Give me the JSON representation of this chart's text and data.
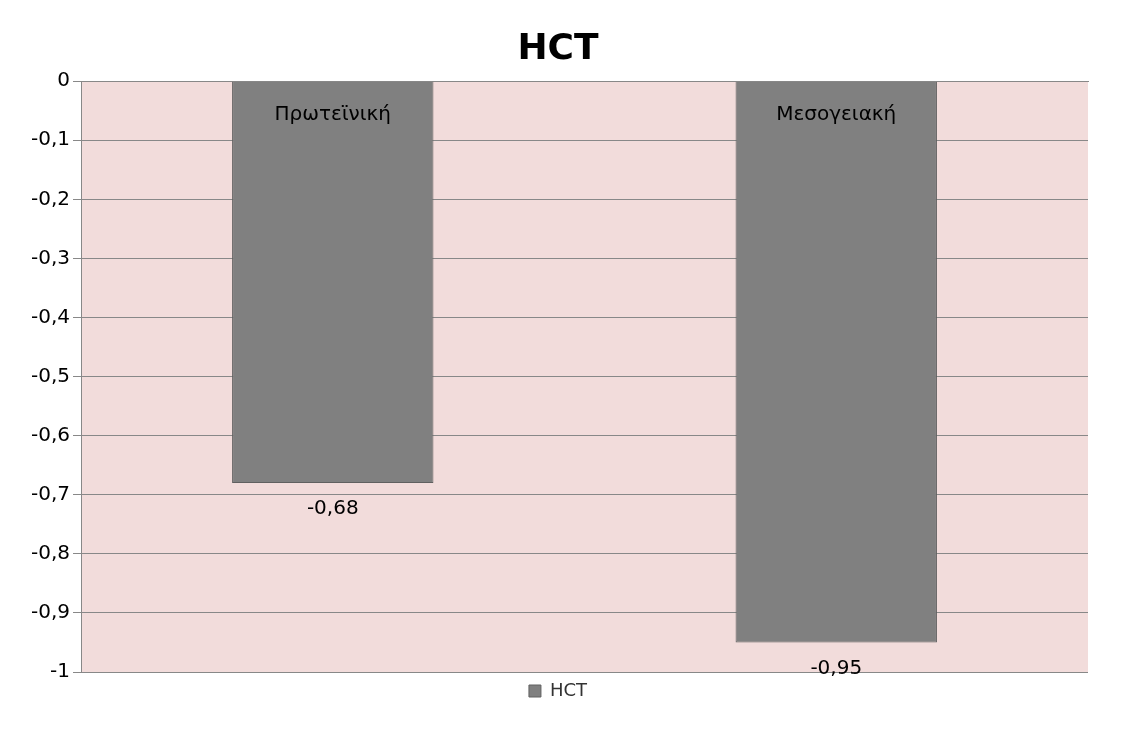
{
  "chart_data": {
    "type": "bar",
    "title": "HCT",
    "categories": [
      "Πρωτεϊνική",
      "Μεσογειακή"
    ],
    "series": [
      {
        "name": "HCT",
        "color": "#808080",
        "values": [
          -0.68,
          -0.95
        ],
        "value_labels": [
          "-0,68",
          "-0,95"
        ]
      }
    ],
    "ylim": [
      -1,
      0
    ],
    "yticks": [
      {
        "value": 0,
        "label": "0"
      },
      {
        "value": -0.1,
        "label": "-0,1"
      },
      {
        "value": -0.2,
        "label": "-0,2"
      },
      {
        "value": -0.3,
        "label": "-0,3"
      },
      {
        "value": -0.4,
        "label": "-0,4"
      },
      {
        "value": -0.5,
        "label": "-0,5"
      },
      {
        "value": -0.6,
        "label": "-0,6"
      },
      {
        "value": -0.7,
        "label": "-0,7"
      },
      {
        "value": -0.8,
        "label": "-0,8"
      },
      {
        "value": -0.9,
        "label": "-0,9"
      },
      {
        "value": -1,
        "label": "-1"
      }
    ],
    "grid": "y",
    "legend": "bottom"
  }
}
